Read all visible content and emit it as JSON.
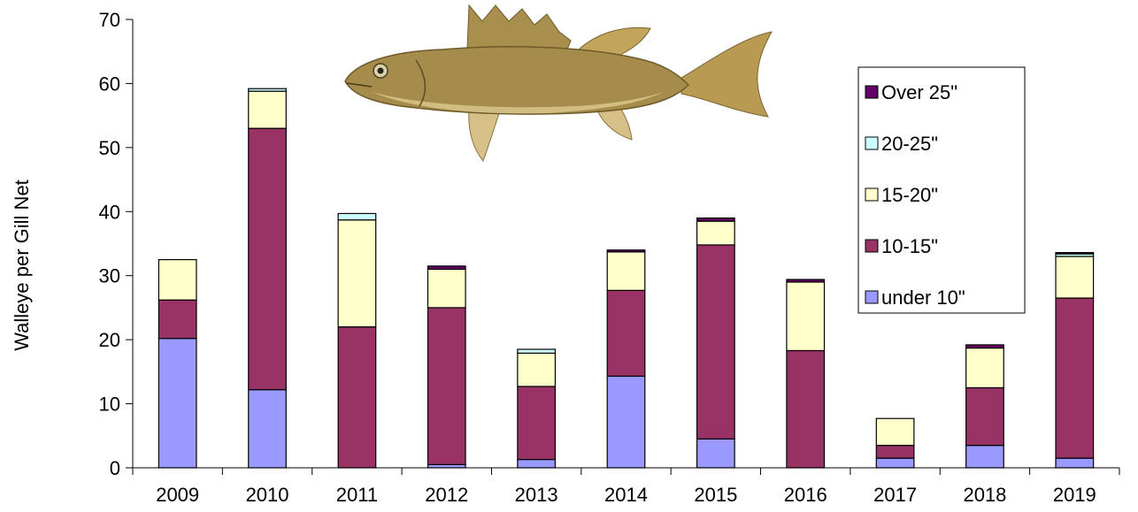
{
  "chart_data": {
    "type": "bar",
    "stacked": true,
    "title": "",
    "xlabel": "",
    "ylabel": "Walleye per Gill Net",
    "ylim": [
      0,
      70
    ],
    "yticks": [
      0,
      10,
      20,
      30,
      40,
      50,
      60,
      70
    ],
    "grid": false,
    "legend_position": "top-right",
    "categories": [
      "2009",
      "2010",
      "2011",
      "2012",
      "2013",
      "2014",
      "2015",
      "2016",
      "2017",
      "2018",
      "2019"
    ],
    "series": [
      {
        "name": "under 10\"",
        "color": "#9999ff",
        "values": [
          20.2,
          12.2,
          0,
          0.5,
          1.3,
          14.3,
          4.5,
          0,
          1.5,
          3.5,
          1.5
        ]
      },
      {
        "name": "10-15\"",
        "color": "#993366",
        "values": [
          6.0,
          40.8,
          22.0,
          24.5,
          11.4,
          13.4,
          30.3,
          18.3,
          2.0,
          9.0,
          25.0
        ]
      },
      {
        "name": "15-20\"",
        "color": "#ffffcc",
        "values": [
          6.3,
          5.8,
          16.7,
          6.0,
          5.2,
          6.0,
          3.7,
          10.7,
          4.2,
          6.2,
          6.5
        ]
      },
      {
        "name": "20-25\"",
        "color": "#ccffff",
        "values": [
          0,
          0.4,
          1.0,
          0,
          0.6,
          0,
          0,
          0,
          0,
          0,
          0.4
        ]
      },
      {
        "name": "Over 25\"",
        "color": "#660066",
        "values": [
          0,
          0,
          0,
          0.5,
          0,
          0.3,
          0.5,
          0.4,
          0,
          0.5,
          0.2
        ]
      }
    ],
    "image": {
      "name": "walleye-fish-illustration"
    }
  }
}
